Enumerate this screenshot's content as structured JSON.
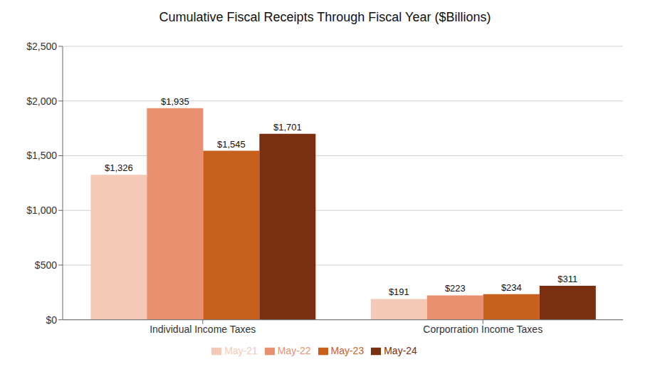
{
  "chart_data": {
    "type": "bar",
    "title": "Cumulative Fiscal Receipts Through Fiscal Year ($Billions)",
    "categories": [
      "Individual Income Taxes",
      "Corporration Income Taxes"
    ],
    "series": [
      {
        "name": "May-21",
        "color": "#f5c9b8",
        "values": [
          1326,
          191
        ],
        "value_labels": [
          "$1,326",
          "$191"
        ]
      },
      {
        "name": "May-22",
        "color": "#e99070",
        "values": [
          1935,
          223
        ],
        "value_labels": [
          "$1,935",
          "$223"
        ]
      },
      {
        "name": "May-23",
        "color": "#c8601e",
        "values": [
          1545,
          234
        ],
        "value_labels": [
          "$1,545",
          "$234"
        ]
      },
      {
        "name": "May-24",
        "color": "#7a3010",
        "values": [
          1701,
          311
        ],
        "value_labels": [
          "$1,701",
          "$311"
        ]
      }
    ],
    "ylim": [
      0,
      2500
    ],
    "yticks": [
      {
        "value": 0,
        "label": "$0"
      },
      {
        "value": 500,
        "label": "$500"
      },
      {
        "value": 1000,
        "label": "$1,000"
      },
      {
        "value": 1500,
        "label": "$1,500"
      },
      {
        "value": 2000,
        "label": "$2,000"
      },
      {
        "value": 2500,
        "label": "$2,500"
      }
    ],
    "grid": true,
    "legend": "bottom",
    "data_labels": true
  }
}
